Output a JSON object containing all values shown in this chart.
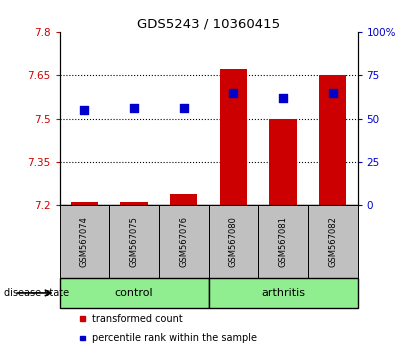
{
  "title": "GDS5243 / 10360415",
  "samples": [
    "GSM567074",
    "GSM567075",
    "GSM567076",
    "GSM567080",
    "GSM567081",
    "GSM567082"
  ],
  "transformed_counts": [
    7.21,
    7.21,
    7.24,
    7.67,
    7.5,
    7.65
  ],
  "percentile_ranks": [
    55,
    56,
    56,
    65,
    62,
    65
  ],
  "ylim_left": [
    7.2,
    7.8
  ],
  "ylim_right": [
    0,
    100
  ],
  "yticks_left": [
    7.2,
    7.35,
    7.5,
    7.65,
    7.8
  ],
  "yticks_right": [
    0,
    25,
    50,
    75,
    100
  ],
  "ytick_labels_left": [
    "7.2",
    "7.35",
    "7.5",
    "7.65",
    "7.8"
  ],
  "ytick_labels_right": [
    "0",
    "25",
    "50",
    "75",
    "100%"
  ],
  "dotted_lines": [
    7.35,
    7.5,
    7.65
  ],
  "bar_color": "#CC0000",
  "dot_color": "#0000CC",
  "bar_width": 0.55,
  "dot_size": 40,
  "bar_bottom": 7.2,
  "disease_state_label": "disease state",
  "legend_items": [
    "transformed count",
    "percentile rank within the sample"
  ],
  "legend_colors": [
    "#CC0000",
    "#0000CC"
  ],
  "label_color_left": "#CC0000",
  "label_color_right": "#0000CC",
  "background_color": "#ffffff",
  "sample_box_color": "#C0C0C0",
  "group_color": "#90EE90",
  "grid_linewidth": 0.8,
  "group_ranges": [
    [
      0,
      2,
      "control"
    ],
    [
      3,
      5,
      "arthritis"
    ]
  ]
}
